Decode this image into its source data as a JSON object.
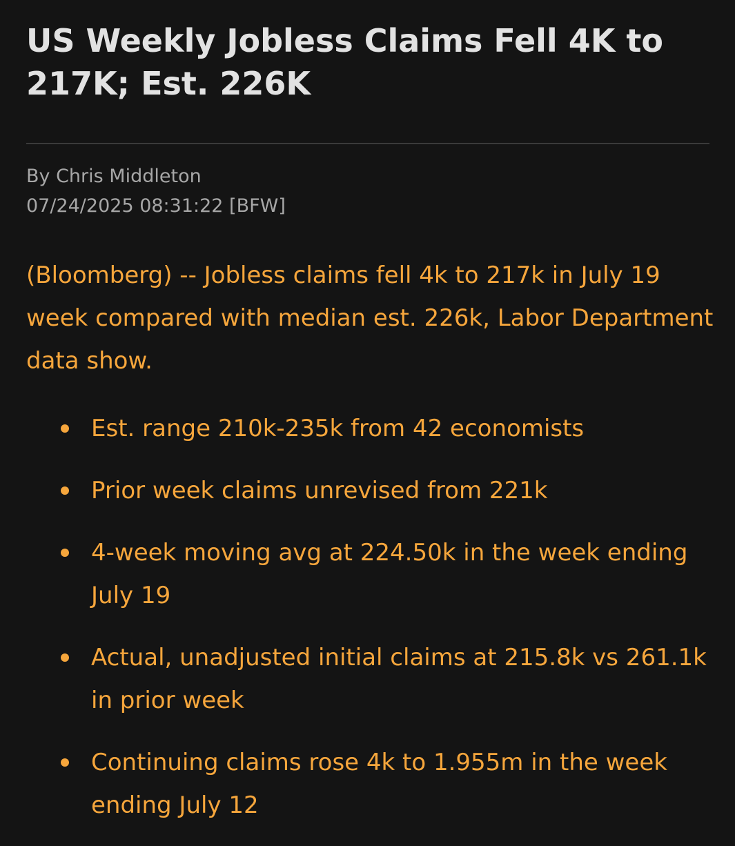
{
  "article": {
    "headline": "US Weekly Jobless Claims Fell 4K to 217K; Est. 226K",
    "byline": "By Chris Middleton",
    "dateline": "07/24/2025 08:31:22 [BFW]",
    "lead": "(Bloomberg) -- Jobless claims fell 4k to 217k in July 19 week compared with median est. 226k, Labor Department data show.",
    "bullets": [
      {
        "text": "Est. range 210k-235k from 42 economists"
      },
      {
        "text": "Prior week claims unrevised from 221k"
      },
      {
        "text": "4-week moving avg at 224.50k in the week ending July 19"
      },
      {
        "text": "Actual, unadjusted initial claims at 215.8k vs 261.1k in prior week"
      },
      {
        "text": "Continuing claims rose 4k to 1.955m in the week ending July 12"
      }
    ]
  },
  "colors": {
    "background": "#141414",
    "headline": "#e2e2e2",
    "meta": "#a7a7a7",
    "body_text": "#f6a63c",
    "divider": "#3a3a3a"
  }
}
